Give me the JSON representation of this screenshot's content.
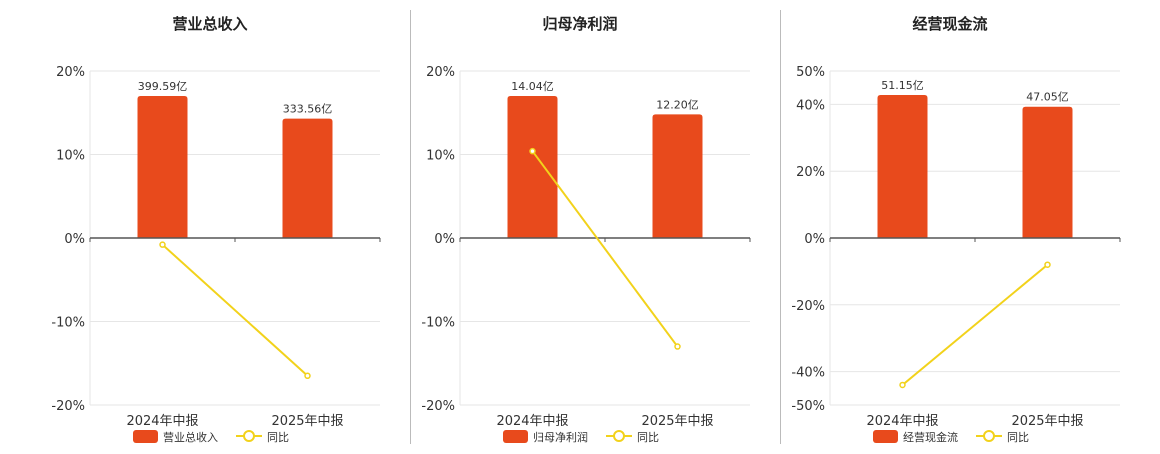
{
  "colors": {
    "bar": "#e84a1c",
    "line": "#f2d21b",
    "grid": "#e6e6e6",
    "axis": "#555555"
  },
  "chart_data": [
    {
      "type": "bar",
      "title": "营业总收入",
      "categories": [
        "2024年中报",
        "2025年中报"
      ],
      "ylim": [
        -20,
        20
      ],
      "yticks": [
        20,
        10,
        0,
        -10,
        -20
      ],
      "tick_labels": [
        "20%",
        "10%",
        "0%",
        "-10%",
        "-20%"
      ],
      "series": [
        {
          "name": "营业总收入",
          "type": "bar",
          "values": [
            17.0,
            14.3
          ],
          "labels": [
            "399.59亿",
            "333.56亿"
          ]
        },
        {
          "name": "同比",
          "type": "line",
          "values": [
            -0.8,
            -16.5
          ]
        }
      ],
      "legend": "bottom"
    },
    {
      "type": "bar",
      "title": "归母净利润",
      "categories": [
        "2024年中报",
        "2025年中报"
      ],
      "ylim": [
        -20,
        20
      ],
      "yticks": [
        20,
        10,
        0,
        -10,
        -20
      ],
      "tick_labels": [
        "20%",
        "10%",
        "0%",
        "-10%",
        "-20%"
      ],
      "series": [
        {
          "name": "归母净利润",
          "type": "bar",
          "values": [
            17.0,
            14.8
          ],
          "labels": [
            "14.04亿",
            "12.20亿"
          ]
        },
        {
          "name": "同比",
          "type": "line",
          "values": [
            10.4,
            -13.0
          ]
        }
      ],
      "legend": "bottom"
    },
    {
      "type": "bar",
      "title": "经营现金流",
      "categories": [
        "2024年中报",
        "2025年中报"
      ],
      "ylim": [
        -50,
        50
      ],
      "yticks": [
        50,
        40,
        20,
        0,
        -20,
        -40,
        -50
      ],
      "tick_labels": [
        "50%",
        "40%",
        "20%",
        "0%",
        "-20%",
        "-40%",
        "-50%"
      ],
      "series": [
        {
          "name": "经营现金流",
          "type": "bar",
          "values": [
            42.8,
            39.3
          ],
          "labels": [
            "51.15亿",
            "47.05亿"
          ]
        },
        {
          "name": "同比",
          "type": "line",
          "values": [
            -44.0,
            -8.0
          ]
        }
      ],
      "legend": "bottom"
    }
  ]
}
